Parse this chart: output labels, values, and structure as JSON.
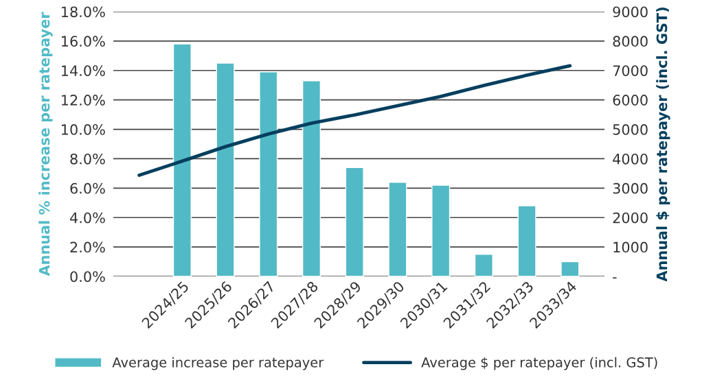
{
  "chart_data": {
    "type": "bar",
    "categories": [
      null,
      "2024/25",
      "2025/26",
      "2026/27",
      "2027/28",
      "2028/29",
      "2029/30",
      "2030/31",
      "2031/32",
      "2032/33",
      "2033/34"
    ],
    "series": [
      {
        "name": "Average increase per ratepayer",
        "color": "#52bac6",
        "values": [
          null,
          15.8,
          14.5,
          13.9,
          13.3,
          7.4,
          6.4,
          6.2,
          1.5,
          4.8,
          1.0
        ]
      },
      {
        "name": "Average $ per ratepayer (incl. GST)",
        "type": "line",
        "axis": "y2",
        "color": "#053f5e",
        "line_style": "solid",
        "values": [
          3440,
          3920,
          4410,
          4840,
          5210,
          5490,
          5800,
          6120,
          6490,
          6840,
          7160
        ]
      }
    ],
    "ylabel": "Annual % increase per ratepayer",
    "y2label": "Annual $ per ratepayer (incl. GST)",
    "ylim": [
      0,
      18
    ],
    "yticks": [
      {
        "value": 0,
        "label": "0.0%"
      },
      {
        "value": 2,
        "label": "2.0%"
      },
      {
        "value": 4,
        "label": "4.0%"
      },
      {
        "value": 6,
        "label": "6.0%"
      },
      {
        "value": 8,
        "label": "8.0%"
      },
      {
        "value": 10,
        "label": "10.0%"
      },
      {
        "value": 12,
        "label": "12.0%"
      },
      {
        "value": 14,
        "label": "14.0%"
      },
      {
        "value": 16,
        "label": "16.0%"
      },
      {
        "value": 18,
        "label": "18.0%"
      }
    ],
    "y2lim": [
      0,
      9000
    ],
    "y2ticks": [
      {
        "value": 0,
        "label": "-"
      },
      1000,
      2000,
      3000,
      4000,
      5000,
      6000,
      7000,
      8000,
      9000
    ],
    "grid": "y",
    "legend": "bottom"
  }
}
